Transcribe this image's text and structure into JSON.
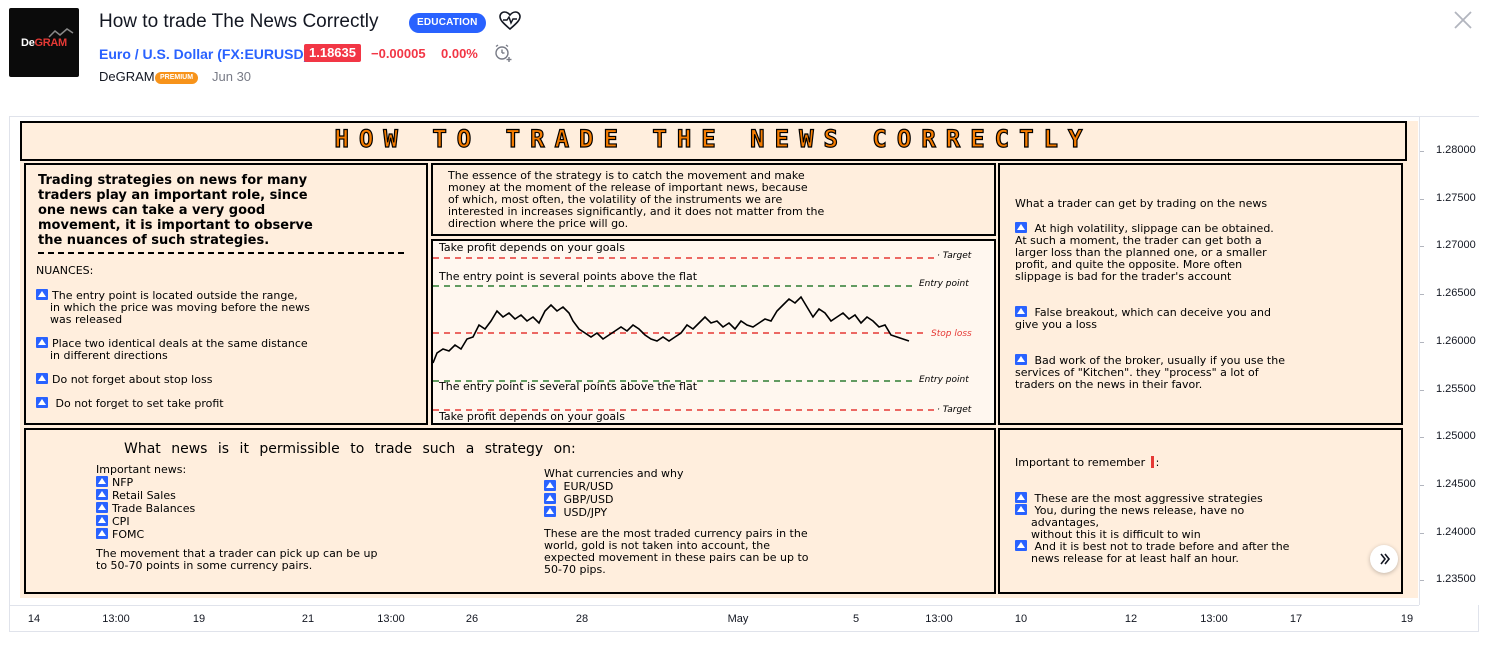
{
  "header": {
    "logo": {
      "text_a": "De",
      "text_b": "GRAM"
    },
    "title": "How to trade The News Correctly",
    "category_badge": "EDUCATION",
    "symbol_name": "Euro / U.S. Dollar",
    "symbol_ticker": "(FX:EURUSD)",
    "price": "1.18635",
    "change": "−0.00005",
    "change_pct": "0.00%",
    "author": "DeGRAM",
    "author_badge": "PREMIUM",
    "date": "Jun 30",
    "icons": [
      "heart-pulse-icon",
      "alarm-add-icon",
      "close-icon",
      "chevron-right-icon"
    ]
  },
  "chart": {
    "y_ticks": [
      "1.28000",
      "1.27500",
      "1.27000",
      "1.26500",
      "1.26000",
      "1.25500",
      "1.25000",
      "1.24500",
      "1.24000",
      "1.23500"
    ],
    "x_ticks": [
      "14",
      "13:00",
      "19",
      "21",
      "13:00",
      "26",
      "28",
      "May",
      "5",
      "13:00",
      "10",
      "12",
      "13:00",
      "17",
      "19"
    ]
  },
  "infographic": {
    "title": "HOW TO TRADE THE NEWS CORRECTLY",
    "intro": [
      "Trading strategies on news for many",
      "traders play an important role, since",
      "one news can take a very good",
      "movement, it is important to observe",
      "the nuances of such strategies."
    ],
    "nuances_label": "NUANCES:",
    "nuances": [
      [
        "The entry point is located outside the range,",
        "in which the price was moving before the news",
        "was released"
      ],
      [
        "Place two identical deals at the same distance",
        "in different directions"
      ],
      [
        "Do not forget about stop loss"
      ],
      [
        "Do not forget to set take profit"
      ]
    ],
    "essence": [
      "The essence of the strategy is to catch the movement and make",
      "money at the moment of the release of important news, because",
      "of which, most often, the volatility of the instruments we are",
      "interested in increases significantly, and it does not matter from the",
      "direction where the price will go."
    ],
    "diagram": {
      "tp_top": "Take profit depends on your goals",
      "entry_top": "The entry point is several points above the flat",
      "entry_bottom": "The entry point is several points above the flat",
      "tp_bottom": "Take profit depends on your goals",
      "label_target": "Target",
      "label_entry": "Entry point",
      "label_stop": "Stop loss"
    },
    "gains_heading": "What a trader can get by trading on the news",
    "gains": [
      [
        "At high volatility, slippage can be obtained.",
        "At such a moment, the trader can get both a",
        "larger loss than the planned one, or a smaller",
        "profit, and quite the opposite. More often",
        "slippage is bad for the trader's account"
      ],
      [
        "False breakout, which can deceive you and",
        "give you a loss"
      ],
      [
        "Bad work of the broker, usually if you use the",
        "services of \"Kitchen\". they \"process\" a lot of",
        "traders on the news in their favor."
      ]
    ],
    "news_heading": "What news is it permissible to trade such a strategy on:",
    "important_news_label": "Important news:",
    "important_news": [
      "NFP",
      "Retail Sales",
      "Trade Balances",
      "CPI",
      "FOMC"
    ],
    "news_note": [
      "The movement that a trader can pick up can be up",
      "to 50-70 points in some currency pairs."
    ],
    "currencies_label": "What currencies and why",
    "currencies": [
      "EUR/USD",
      "GBP/USD",
      "USD/JPY"
    ],
    "currencies_note": [
      "These are the most traded currency pairs in the",
      "world, gold is not taken into account, the",
      "expected movement in these pairs can be up to",
      "50-70 pips."
    ],
    "remember_label": "Important to remember",
    "remember_colon": ":",
    "remember": [
      [
        "These are the most aggressive strategies"
      ],
      [
        "You, during the news release, have no",
        "advantages,",
        "without this it is difficult to win"
      ],
      [
        "And it is best not to trade before and after the",
        "news release for at least half an hour."
      ]
    ]
  }
}
